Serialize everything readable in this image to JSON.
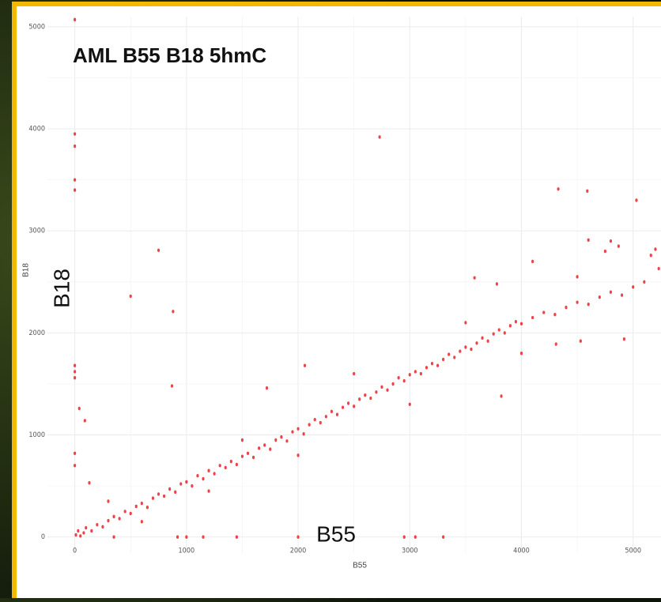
{
  "chart_data": {
    "type": "scatter",
    "title": "AML B55  B18 5hmC",
    "x_label": "B55",
    "y_label": "B18",
    "overlay_labels": {
      "x": "B55",
      "y": "B18"
    },
    "color": "#e8141c",
    "xlim": [
      -500,
      5250
    ],
    "ylim": [
      -250,
      5100
    ],
    "xticks": [
      0,
      1000,
      2000,
      3000,
      4000,
      5000
    ],
    "yticks": [
      0,
      1000,
      2000,
      3000,
      4000,
      5000
    ],
    "minor_xticks": [
      500,
      1500,
      2500,
      3500,
      4500
    ],
    "minor_yticks": [
      500,
      1500,
      2500,
      3500,
      4500
    ],
    "grid": true,
    "x": [
      0,
      0,
      0,
      0,
      0,
      0,
      0,
      0,
      0,
      0,
      40,
      90,
      2730,
      4330,
      4590,
      5030,
      750,
      500,
      880,
      870,
      1720,
      2060,
      130,
      350,
      920,
      1000,
      1150,
      1450,
      2000,
      2950,
      3050,
      3300,
      4600,
      4800,
      4870,
      4750,
      3580,
      3780,
      4100,
      3820,
      4920,
      4530,
      4310,
      5200,
      5160,
      5230,
      10,
      30,
      50,
      80,
      100,
      150,
      200,
      250,
      300,
      350,
      400,
      450,
      500,
      550,
      600,
      650,
      700,
      750,
      800,
      850,
      900,
      950,
      1000,
      1050,
      1100,
      1150,
      1200,
      1250,
      1300,
      1350,
      1400,
      1450,
      1500,
      1550,
      1600,
      1650,
      1700,
      1750,
      1800,
      1850,
      1900,
      1950,
      2000,
      2050,
      2100,
      2150,
      2200,
      2250,
      2300,
      2350,
      2400,
      2450,
      2500,
      2550,
      2600,
      2650,
      2700,
      2750,
      2800,
      2850,
      2900,
      2950,
      3000,
      3050,
      3100,
      3150,
      3200,
      3250,
      3300,
      3350,
      3400,
      3450,
      3500,
      3550,
      3600,
      3650,
      3700,
      3750,
      3800,
      3850,
      3900,
      3950,
      4000,
      4100,
      4200,
      4300,
      4400,
      4500,
      4600,
      4700,
      4800,
      4900,
      5000,
      5100,
      1200,
      1500,
      2000,
      2500,
      3000,
      3500,
      4000,
      4500,
      600,
      300
    ],
    "values": [
      5070,
      3950,
      3830,
      3500,
      3400,
      1680,
      1620,
      1560,
      820,
      700,
      1260,
      1140,
      3920,
      3410,
      3390,
      3300,
      2810,
      2360,
      2210,
      1480,
      1460,
      1680,
      530,
      0,
      0,
      0,
      0,
      0,
      0,
      0,
      0,
      0,
      2910,
      2900,
      2850,
      2800,
      2540,
      2480,
      2700,
      1380,
      1940,
      1920,
      1890,
      2820,
      2760,
      2630,
      20,
      60,
      10,
      40,
      90,
      60,
      120,
      100,
      160,
      200,
      180,
      250,
      230,
      300,
      330,
      290,
      380,
      420,
      400,
      470,
      440,
      520,
      540,
      500,
      600,
      570,
      650,
      620,
      700,
      680,
      740,
      710,
      790,
      820,
      780,
      870,
      900,
      860,
      950,
      980,
      940,
      1030,
      1060,
      1010,
      1100,
      1150,
      1120,
      1180,
      1230,
      1200,
      1270,
      1310,
      1280,
      1350,
      1390,
      1360,
      1420,
      1470,
      1440,
      1500,
      1560,
      1530,
      1590,
      1620,
      1600,
      1660,
      1700,
      1680,
      1740,
      1790,
      1760,
      1820,
      1860,
      1840,
      1900,
      1950,
      1920,
      1990,
      2030,
      2000,
      2070,
      2110,
      2090,
      2150,
      2200,
      2180,
      2250,
      2300,
      2280,
      2350,
      2400,
      2370,
      2450,
      2500,
      450,
      950,
      800,
      1600,
      1300,
      2100,
      1800,
      2550,
      150,
      350
    ]
  }
}
